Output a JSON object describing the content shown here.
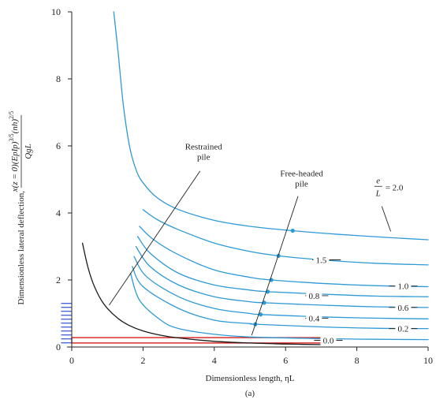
{
  "chart_data": {
    "type": "line",
    "xlabel": "Dimensionless length, ηL",
    "ylabel": "Dimensionless lateral deflection,",
    "ylabel_formula_1": "x",
    "ylabel_formula_2": "(z = 0)(EpIp)",
    "ylabel_formula_3": "3/5",
    "ylabel_formula_4": "(nh)",
    "ylabel_formula_5": "2/5",
    "ylabel_denominator": "QgL",
    "caption": "(a)",
    "xlim": [
      0,
      10
    ],
    "ylim": [
      0,
      10
    ],
    "x_ticks": [
      "0",
      "2",
      "4",
      "6",
      "8",
      "10"
    ],
    "y_ticks": [
      "0",
      "2",
      "4",
      "6",
      "8",
      "10"
    ],
    "colors": {
      "free_headed": "#2e9ad6",
      "restrained": "#1a1a1a",
      "highlight": "#d42020",
      "axis": "#222222",
      "marks": "#1c3fd0"
    },
    "series": [
      {
        "name": "2.0",
        "color": "#2e9ad6",
        "x": [
          1.18,
          1.3,
          1.45,
          1.62,
          1.8,
          2.0,
          2.4,
          3.0,
          4.0,
          5.0,
          6.2,
          7.5,
          9.0,
          10.0
        ],
        "y": [
          10.0,
          8.8,
          7.2,
          6.0,
          5.3,
          4.9,
          4.45,
          4.1,
          3.78,
          3.6,
          3.47,
          3.36,
          3.26,
          3.2
        ]
      },
      {
        "name": "1.5",
        "color": "#2e9ad6",
        "x": [
          2.0,
          2.4,
          3.0,
          4.0,
          5.0,
          5.8,
          7.0,
          8.5,
          10.0
        ],
        "y": [
          4.1,
          3.8,
          3.5,
          3.1,
          2.85,
          2.72,
          2.6,
          2.5,
          2.45
        ]
      },
      {
        "name": "1.0",
        "color": "#2e9ad6",
        "x": [
          1.9,
          2.3,
          3.0,
          4.0,
          5.0,
          5.6,
          7.0,
          8.5,
          10.0
        ],
        "y": [
          3.6,
          3.2,
          2.75,
          2.3,
          2.08,
          2.0,
          1.9,
          1.83,
          1.8
        ]
      },
      {
        "name": "0.8",
        "color": "#2e9ad6",
        "x": [
          1.85,
          2.2,
          3.0,
          4.0,
          5.0,
          5.5,
          7.0,
          8.5,
          10.0
        ],
        "y": [
          3.3,
          2.8,
          2.2,
          1.85,
          1.7,
          1.65,
          1.58,
          1.52,
          1.5
        ]
      },
      {
        "name": "0.6",
        "color": "#2e9ad6",
        "x": [
          1.8,
          2.2,
          3.0,
          4.0,
          5.0,
          5.4,
          7.0,
          8.5,
          10.0
        ],
        "y": [
          3.0,
          2.4,
          1.85,
          1.5,
          1.35,
          1.32,
          1.25,
          1.2,
          1.18
        ]
      },
      {
        "name": "0.4",
        "color": "#2e9ad6",
        "x": [
          1.75,
          2.1,
          3.0,
          4.0,
          5.0,
          5.3,
          7.0,
          8.5,
          10.0
        ],
        "y": [
          2.7,
          2.1,
          1.5,
          1.15,
          1.0,
          0.97,
          0.9,
          0.86,
          0.84
        ]
      },
      {
        "name": "0.2",
        "color": "#2e9ad6",
        "x": [
          1.7,
          2.0,
          3.0,
          4.0,
          5.0,
          5.15,
          7.0,
          8.5,
          10.0
        ],
        "y": [
          2.4,
          1.8,
          1.15,
          0.8,
          0.7,
          0.68,
          0.6,
          0.56,
          0.55
        ]
      },
      {
        "name": "0.0",
        "color": "#2e9ad6",
        "x": [
          1.65,
          1.9,
          2.5,
          3.0,
          4.0,
          5.0,
          7.0,
          8.5,
          10.0
        ],
        "y": [
          2.2,
          1.4,
          0.8,
          0.55,
          0.38,
          0.3,
          0.25,
          0.23,
          0.22
        ]
      },
      {
        "name": "Restrained pile",
        "color": "#1a1a1a",
        "x": [
          0.3,
          0.45,
          0.6,
          0.8,
          1.0,
          1.3,
          1.6,
          2.0,
          2.5,
          3.0,
          4.0,
          5.0,
          6.0,
          7.0
        ],
        "y": [
          3.1,
          2.4,
          1.9,
          1.45,
          1.15,
          0.85,
          0.65,
          0.48,
          0.35,
          0.27,
          0.17,
          0.12,
          0.09,
          0.07
        ]
      }
    ],
    "free_headed_points": {
      "x": [
        6.2,
        5.8,
        5.6,
        5.5,
        5.4,
        5.3,
        5.15
      ],
      "y": [
        3.47,
        2.72,
        2.0,
        1.65,
        1.32,
        0.97,
        0.68
      ]
    },
    "red_band": {
      "x": [
        0,
        7.2
      ],
      "y": [
        0.12,
        0.28
      ]
    },
    "blue_hatch": {
      "x": [
        -0.3,
        0
      ],
      "y": [
        0.1,
        1.3
      ]
    },
    "annotations": {
      "restrained": {
        "line1": "Restrained",
        "line2": "pile",
        "tx": 3.7,
        "ty": 5.9,
        "from": [
          3.6,
          5.25
        ],
        "to": [
          1.05,
          1.25
        ]
      },
      "free_headed": {
        "line1": "Free-headed",
        "line2": "pile",
        "tx": 6.45,
        "ty": 5.1,
        "from": [
          6.35,
          4.5
        ],
        "to": [
          5.05,
          0.35
        ]
      },
      "ratio": {
        "numerator": "e",
        "denominator": "L",
        "equals": "= 2.0",
        "tx": 8.6,
        "ty": 4.7,
        "from": [
          8.7,
          4.2
        ],
        "to": [
          8.95,
          3.45
        ]
      },
      "labels": [
        {
          "text": "1.5",
          "x": 7.0,
          "y": 2.6,
          "leader_from": 6.75,
          "leader_to": 7.55
        },
        {
          "text": "1.0",
          "x": 9.3,
          "y": 1.82,
          "leader_from": 8.9,
          "leader_to": 9.7
        },
        {
          "text": "0.8",
          "x": 6.8,
          "y": 1.53,
          "leader_from": 6.55,
          "leader_to": 7.2
        },
        {
          "text": "0.6",
          "x": 9.3,
          "y": 1.18,
          "leader_from": 8.9,
          "leader_to": 9.7
        },
        {
          "text": "0.4",
          "x": 6.8,
          "y": 0.86,
          "leader_from": 6.55,
          "leader_to": 7.2
        },
        {
          "text": "0.2",
          "x": 9.3,
          "y": 0.55,
          "leader_from": 8.9,
          "leader_to": 9.7
        },
        {
          "text": "0.0",
          "x": 7.2,
          "y": 0.2,
          "leader_from": 6.8,
          "leader_to": 7.6
        }
      ]
    }
  }
}
